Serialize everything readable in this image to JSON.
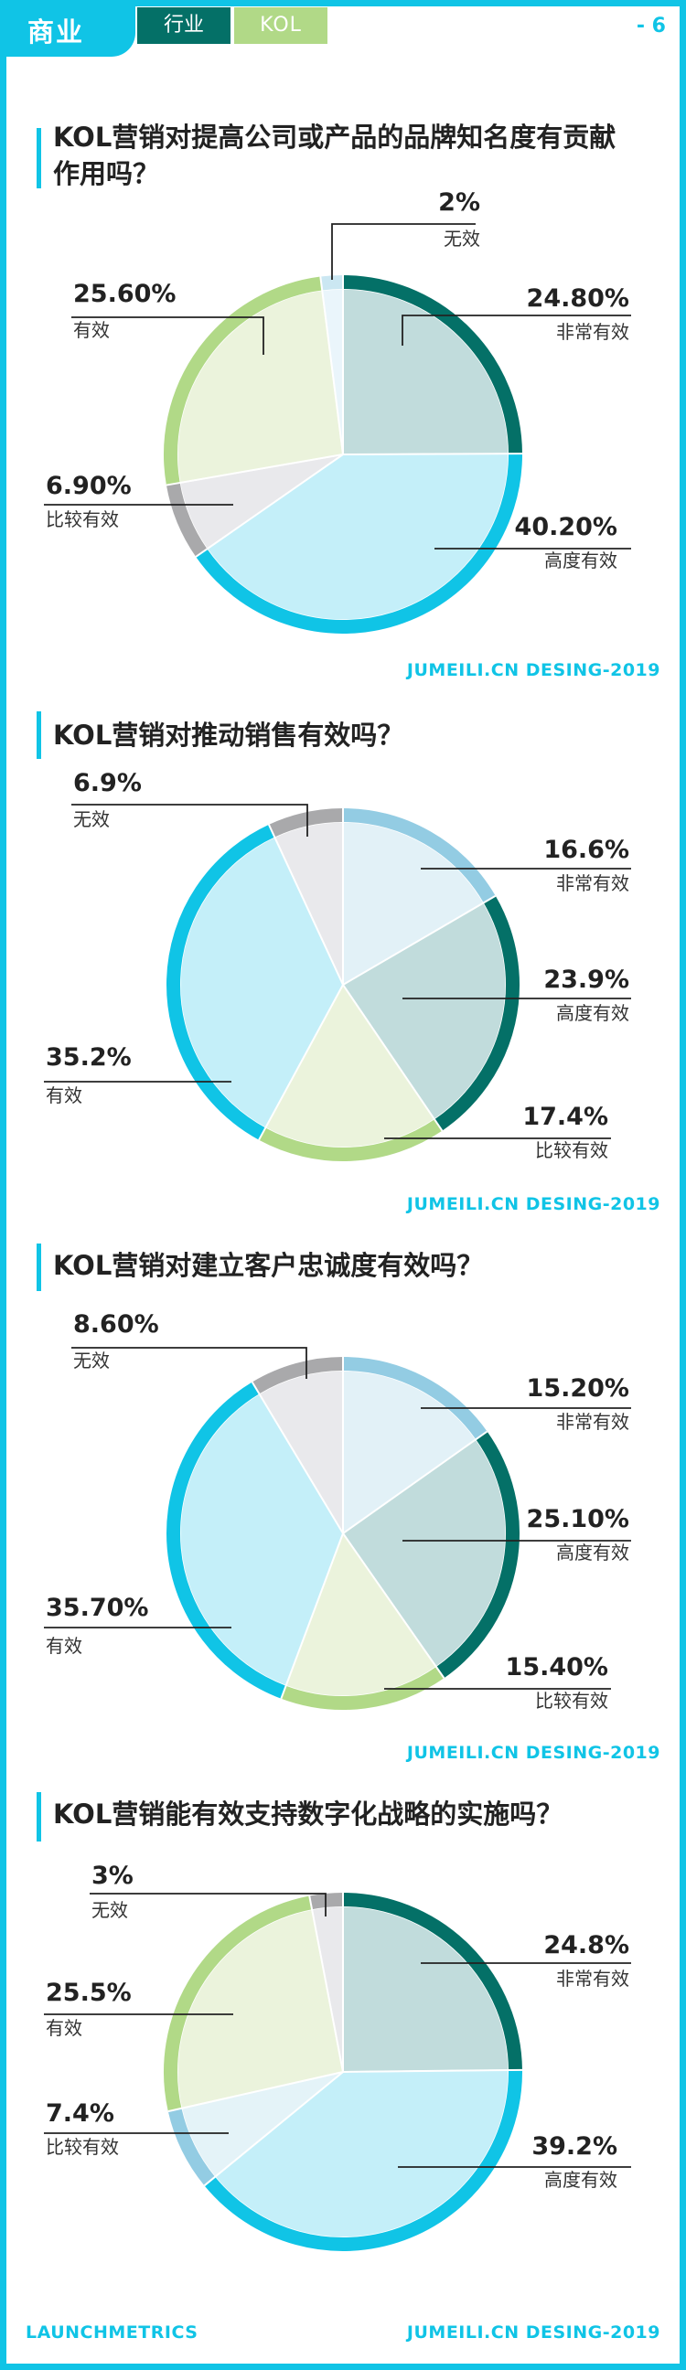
{
  "header": {
    "section_label": "商业",
    "tab_industry": "行业",
    "tab_kol": "KOL",
    "page_number": "- 6"
  },
  "footer": {
    "left": "LAUNCHMETRICS",
    "right": "JUMEILI.CN DESING-2019"
  },
  "credit_text": "JUMEILI.CN DESING-2019",
  "colors": {
    "accent": "#10c4e6",
    "dark_teal": "#047067",
    "light_green": "#b1d987",
    "gray": "#a9a9ab",
    "light_blue": "#93cce3"
  },
  "chart_data": [
    {
      "type": "pie",
      "title": "KOL营销对提高公司或产品的品牌知名度有贡献作用吗？",
      "slices": [
        {
          "name": "非常有效",
          "value": 24.8,
          "label": "24.80%"
        },
        {
          "name": "高度有效",
          "value": 40.2,
          "label": "40.20%"
        },
        {
          "name": "比较有效",
          "value": 6.9,
          "label": "6.90%"
        },
        {
          "name": "有效",
          "value": 25.6,
          "label": "25.60%"
        },
        {
          "name": "无效",
          "value": 2.0,
          "label": "2%"
        }
      ]
    },
    {
      "type": "pie",
      "title": "KOL营销对推动销售有效吗？",
      "slices": [
        {
          "name": "非常有效",
          "value": 16.6,
          "label": "16.6%"
        },
        {
          "name": "高度有效",
          "value": 23.9,
          "label": "23.9%"
        },
        {
          "name": "比较有效",
          "value": 17.4,
          "label": "17.4%"
        },
        {
          "name": "有效",
          "value": 35.2,
          "label": "35.2%"
        },
        {
          "name": "无效",
          "value": 6.9,
          "label": "6.9%"
        }
      ]
    },
    {
      "type": "pie",
      "title": "KOL营销对建立客户忠诚度有效吗？",
      "slices": [
        {
          "name": "非常有效",
          "value": 15.2,
          "label": "15.20%"
        },
        {
          "name": "高度有效",
          "value": 25.1,
          "label": "25.10%"
        },
        {
          "name": "比较有效",
          "value": 15.4,
          "label": "15.40%"
        },
        {
          "name": "有效",
          "value": 35.7,
          "label": "35.70%"
        },
        {
          "name": "无效",
          "value": 8.6,
          "label": "8.60%"
        }
      ]
    },
    {
      "type": "pie",
      "title": "KOL营销能有效支持数字化战略的实施吗？",
      "slices": [
        {
          "name": "非常有效",
          "value": 24.8,
          "label": "24.8%"
        },
        {
          "name": "高度有效",
          "value": 39.2,
          "label": "39.2%"
        },
        {
          "name": "比较有效",
          "value": 7.4,
          "label": "7.4%"
        },
        {
          "name": "有效",
          "value": 25.5,
          "label": "25.5%"
        },
        {
          "name": "无效",
          "value": 3.0,
          "label": "3%"
        }
      ]
    }
  ]
}
